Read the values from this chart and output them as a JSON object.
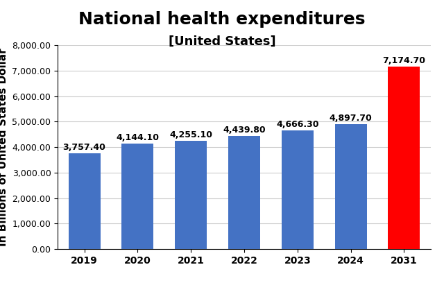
{
  "title": "National health expenditures",
  "subtitle": "[United States]",
  "ylabel": "In Billions of United States Dollar",
  "categories": [
    "2019",
    "2020",
    "2021",
    "2022",
    "2023",
    "2024",
    "2031"
  ],
  "values": [
    3757.4,
    4144.1,
    4255.1,
    4439.8,
    4666.3,
    4897.7,
    7174.7
  ],
  "bar_colors": [
    "#4472c4",
    "#4472c4",
    "#4472c4",
    "#4472c4",
    "#4472c4",
    "#4472c4",
    "#ff0000"
  ],
  "ylim": [
    0,
    8000
  ],
  "yticks": [
    0,
    1000,
    2000,
    3000,
    4000,
    5000,
    6000,
    7000,
    8000
  ],
  "background_color": "#ffffff",
  "grid_color": "#cccccc",
  "title_fontsize": 18,
  "subtitle_fontsize": 13,
  "ylabel_fontsize": 11,
  "label_fontsize": 9,
  "tick_fontsize": 10
}
